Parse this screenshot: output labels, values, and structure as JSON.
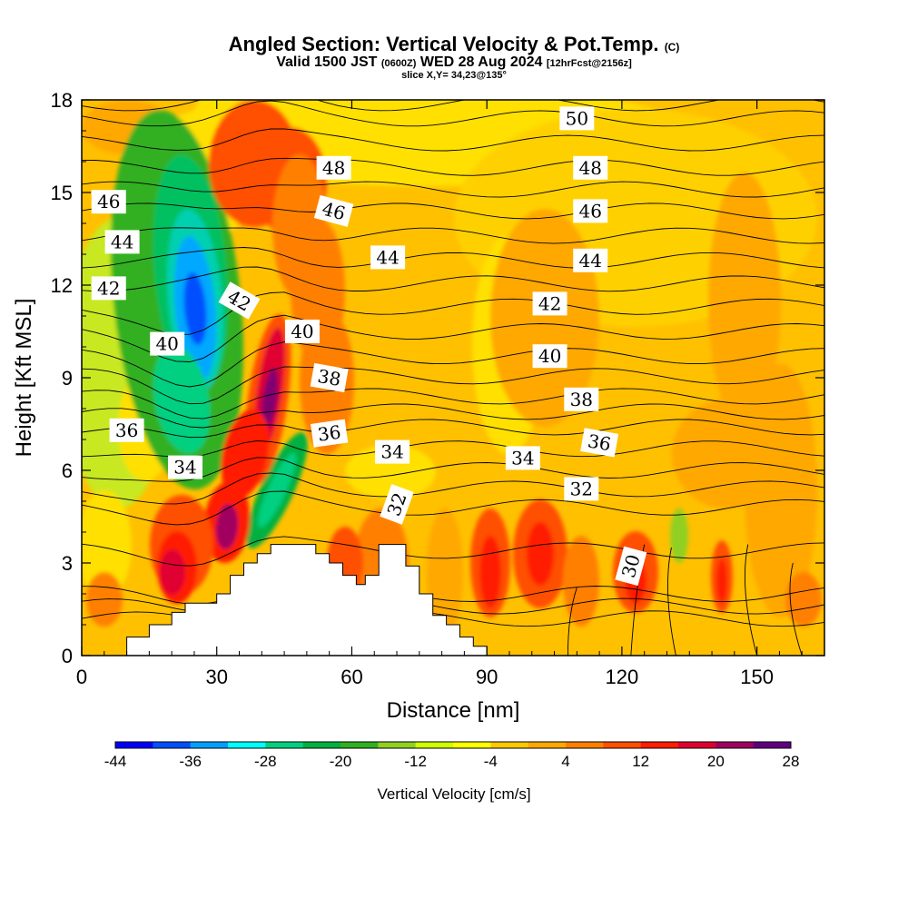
{
  "header": {
    "title_main": "Angled Section: Vertical Velocity & Pot.Temp.",
    "title_c": "(C)",
    "sub_a": "Valid 1500 JST",
    "sub_b": "(0600Z)",
    "sub_c": "WED 28 Aug 2024",
    "sub_d": "[12hrFcst@2156z]",
    "slice": "slice X,Y= 34,23@135°"
  },
  "chart_data": {
    "type": "heatmap",
    "xlabel": "Distance [nm]",
    "ylabel": "Height [Kft MSL]",
    "xlim": [
      0,
      165
    ],
    "ylim": [
      0,
      18
    ],
    "x_ticks": [
      "0",
      "30",
      "60",
      "90",
      "120",
      "150"
    ],
    "x_tick_values": [
      0,
      30,
      60,
      90,
      120,
      150
    ],
    "y_ticks": [
      "0",
      "3",
      "6",
      "9",
      "12",
      "15",
      "18"
    ],
    "y_tick_values": [
      0,
      3,
      6,
      9,
      12,
      15,
      18
    ],
    "grid": false,
    "colorbar": {
      "label": "Vertical Velocity [cm/s]",
      "tick_labels": [
        "-44",
        "-36",
        "-28",
        "-20",
        "-12",
        "-4",
        "4",
        "12",
        "20",
        "28"
      ],
      "tick_values": [
        -44,
        -36,
        -28,
        -20,
        -12,
        -4,
        4,
        12,
        20,
        28
      ],
      "colors": [
        "#0000ff",
        "#0050ff",
        "#00a0ff",
        "#00ffff",
        "#00d080",
        "#00b040",
        "#30b020",
        "#90d020",
        "#d0ff00",
        "#ffff00",
        "#ffc800",
        "#ffa800",
        "#ff8000",
        "#ff5000",
        "#ff1e00",
        "#e00030",
        "#a00060",
        "#600080"
      ]
    },
    "theta_contours": {
      "levels": [
        30,
        32,
        34,
        36,
        38,
        40,
        42,
        44,
        46,
        48,
        50
      ],
      "labels": [
        {
          "text": "50",
          "x": 110,
          "y": 17.4,
          "angle": 0
        },
        {
          "text": "48",
          "x": 56,
          "y": 15.8,
          "angle": 0
        },
        {
          "text": "48",
          "x": 113,
          "y": 15.8,
          "angle": 0
        },
        {
          "text": "46",
          "x": 6,
          "y": 14.7,
          "angle": 0
        },
        {
          "text": "46",
          "x": 56,
          "y": 14.4,
          "angle": 15
        },
        {
          "text": "46",
          "x": 113,
          "y": 14.4,
          "angle": 0
        },
        {
          "text": "44",
          "x": 9,
          "y": 13.4,
          "angle": 0
        },
        {
          "text": "44",
          "x": 68,
          "y": 12.9,
          "angle": 0
        },
        {
          "text": "44",
          "x": 113,
          "y": 12.8,
          "angle": 0
        },
        {
          "text": "42",
          "x": 6,
          "y": 11.9,
          "angle": 0
        },
        {
          "text": "42",
          "x": 35,
          "y": 11.5,
          "angle": 30
        },
        {
          "text": "42",
          "x": 104,
          "y": 11.4,
          "angle": 0
        },
        {
          "text": "40",
          "x": 19,
          "y": 10.1,
          "angle": 0
        },
        {
          "text": "40",
          "x": 49,
          "y": 10.5,
          "angle": 0
        },
        {
          "text": "40",
          "x": 104,
          "y": 9.7,
          "angle": 0
        },
        {
          "text": "38",
          "x": 55,
          "y": 9.0,
          "angle": 10
        },
        {
          "text": "38",
          "x": 111,
          "y": 8.3,
          "angle": 0
        },
        {
          "text": "36",
          "x": 10,
          "y": 7.3,
          "angle": 0
        },
        {
          "text": "36",
          "x": 55,
          "y": 7.2,
          "angle": -8
        },
        {
          "text": "36",
          "x": 115,
          "y": 6.9,
          "angle": 10
        },
        {
          "text": "34",
          "x": 23,
          "y": 6.1,
          "angle": 0
        },
        {
          "text": "34",
          "x": 69,
          "y": 6.6,
          "angle": 0
        },
        {
          "text": "34",
          "x": 98,
          "y": 6.4,
          "angle": 0
        },
        {
          "text": "32",
          "x": 70,
          "y": 4.9,
          "angle": -70
        },
        {
          "text": "32",
          "x": 111,
          "y": 5.4,
          "angle": 0
        },
        {
          "text": "30",
          "x": 122,
          "y": 2.9,
          "angle": -75
        }
      ]
    },
    "terrain_profile_kft": {
      "x": [
        0,
        10,
        10,
        15,
        15,
        20,
        20,
        23,
        23,
        30,
        30,
        33,
        33,
        36,
        36,
        39,
        39,
        42,
        42,
        45,
        45,
        47,
        47,
        52,
        52,
        55,
        55,
        58,
        58,
        61,
        61,
        63,
        63,
        66,
        66,
        72,
        72,
        75,
        75,
        78,
        78,
        81,
        81,
        84,
        84,
        87,
        87,
        90,
        90,
        165
      ],
      "y": [
        0,
        0,
        0.6,
        0.6,
        1.0,
        1.0,
        1.4,
        1.4,
        1.7,
        1.7,
        2.0,
        2.0,
        2.6,
        2.6,
        3.0,
        3.0,
        3.3,
        3.3,
        3.6,
        3.6,
        3.6,
        3.6,
        3.6,
        3.6,
        3.3,
        3.3,
        3.0,
        3.0,
        2.6,
        2.6,
        2.3,
        2.3,
        2.6,
        2.6,
        3.6,
        3.6,
        2.9,
        2.9,
        2.0,
        2.0,
        1.3,
        1.3,
        1.0,
        1.0,
        0.6,
        0.6,
        0.3,
        0.3,
        0,
        0
      ]
    }
  }
}
